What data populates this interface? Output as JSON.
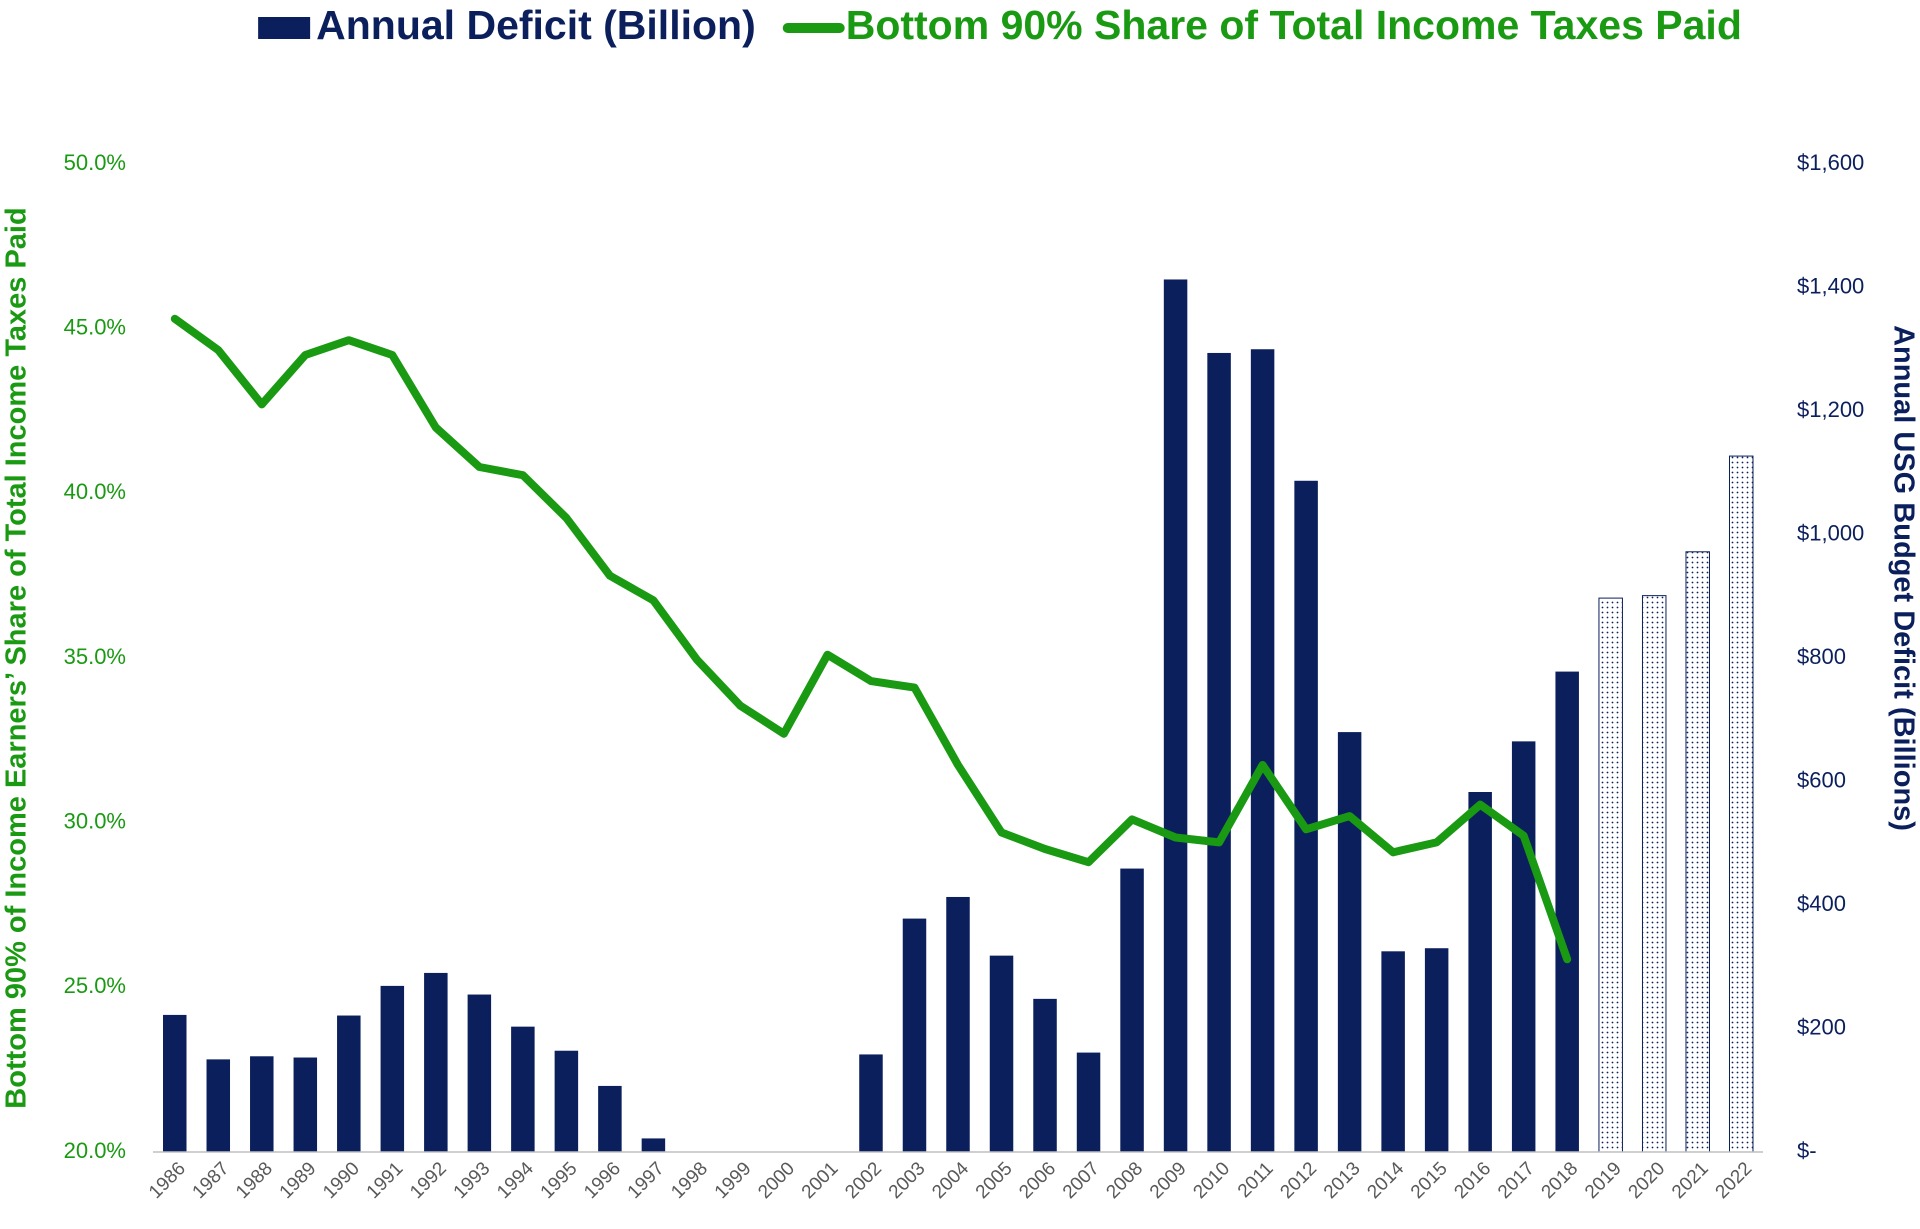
{
  "chart_data": {
    "type": "bar+line",
    "categories": [
      "1986",
      "1987",
      "1988",
      "1989",
      "1990",
      "1991",
      "1992",
      "1993",
      "1994",
      "1995",
      "1996",
      "1997",
      "1998",
      "1999",
      "2000",
      "2001",
      "2002",
      "2003",
      "2004",
      "2005",
      "2006",
      "2007",
      "2008",
      "2009",
      "2010",
      "2011",
      "2012",
      "2013",
      "2014",
      "2015",
      "2016",
      "2017",
      "2018",
      "2019",
      "2020",
      "2021",
      "2022"
    ],
    "series": [
      {
        "name": "Annual Deficit (Billion)",
        "type": "bar",
        "axis": "y2",
        "color": "#0b1f5c",
        "values": [
          222,
          150,
          155,
          153,
          221,
          269,
          290,
          255,
          203,
          164,
          107,
          22,
          0,
          0,
          0,
          0,
          158,
          378,
          413,
          318,
          248,
          161,
          459,
          1413,
          1294,
          1300,
          1087,
          680,
          325,
          330,
          583,
          665,
          778,
          897,
          901,
          972,
          1127
        ],
        "styles": [
          "solid",
          "solid",
          "solid",
          "solid",
          "solid",
          "solid",
          "solid",
          "solid",
          "solid",
          "solid",
          "solid",
          "solid",
          "solid",
          "solid",
          "solid",
          "solid",
          "solid",
          "solid",
          "solid",
          "solid",
          "solid",
          "solid",
          "solid",
          "solid",
          "solid",
          "solid",
          "solid",
          "solid",
          "solid",
          "solid",
          "solid",
          "solid",
          "solid",
          "dotted",
          "dotted",
          "dotted",
          "dotted"
        ]
      },
      {
        "name": "Bottom 90% Share of Total Income Taxes Paid",
        "type": "line",
        "axis": "y",
        "color": "#1a9a12",
        "values": [
          45.3,
          44.35,
          42.7,
          44.2,
          44.65,
          44.2,
          42.0,
          40.8,
          40.55,
          39.25,
          37.5,
          36.75,
          34.95,
          33.55,
          32.7,
          35.1,
          34.3,
          34.1,
          31.75,
          29.7,
          29.2,
          28.8,
          30.1,
          29.55,
          29.4,
          31.75,
          29.8,
          30.2,
          29.1,
          29.4,
          30.55,
          29.6,
          25.85,
          null,
          null,
          null,
          null
        ]
      }
    ],
    "y_label": "Bottom 90% of Income Earners’ Share of Total Income Taxes Paid",
    "y2_label": "Annual USG Budget Deficit (Billions)",
    "ylim": [
      20,
      50
    ],
    "yticks": [
      {
        "value": 20,
        "label": "20.0%"
      },
      {
        "value": 25,
        "label": "25.0%"
      },
      {
        "value": 30,
        "label": "30.0%"
      },
      {
        "value": 35,
        "label": "35.0%"
      },
      {
        "value": 40,
        "label": "40.0%"
      },
      {
        "value": 45,
        "label": "45.0%"
      },
      {
        "value": 50,
        "label": "50.0%"
      }
    ],
    "y2lim": [
      0,
      1600
    ],
    "y2ticks": [
      {
        "value": 0,
        "label": "$-"
      },
      {
        "value": 200,
        "label": "$200"
      },
      {
        "value": 400,
        "label": "$400"
      },
      {
        "value": 600,
        "label": "$600"
      },
      {
        "value": 800,
        "label": "$800"
      },
      {
        "value": 1000,
        "label": "$1,000"
      },
      {
        "value": 1200,
        "label": "$1,200"
      },
      {
        "value": 1400,
        "label": "$1,400"
      },
      {
        "value": 1600,
        "label": "$1,600"
      }
    ],
    "y_color": "#1a9a12",
    "y2_color": "#0b1f5c",
    "grid": false,
    "legend": "top"
  }
}
